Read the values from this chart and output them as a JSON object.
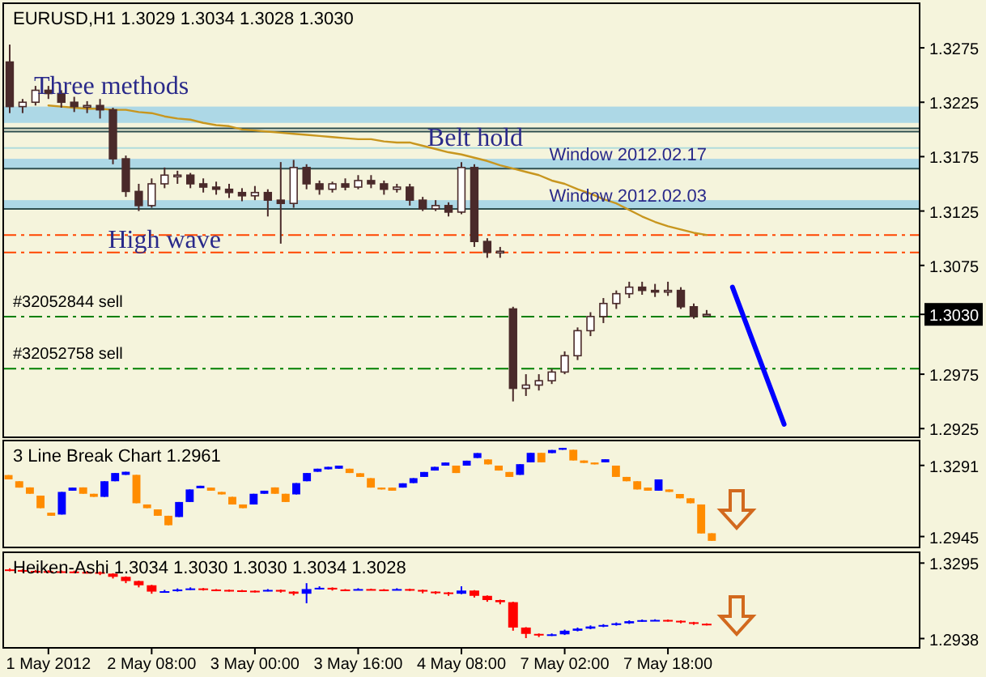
{
  "chart_data": [
    {
      "type": "candlestick",
      "title": "EURUSD,H1  1.3029 1.3034 1.3028 1.3030",
      "color": "#4a2a2a",
      "categories": [
        null,
        null,
        null,
        null,
        null,
        null,
        null,
        null,
        null,
        null,
        null,
        null,
        null,
        null,
        null,
        null,
        null,
        null,
        null,
        null,
        null,
        null,
        null,
        null,
        null,
        null,
        null,
        null,
        null,
        null,
        null,
        null,
        null,
        null,
        null,
        null,
        null,
        null,
        null,
        null,
        null,
        null,
        null,
        null,
        null,
        null,
        null,
        null,
        null,
        null,
        null,
        null,
        null,
        null,
        null,
        null,
        null,
        null,
        null,
        null,
        null,
        null,
        null,
        null,
        null,
        null,
        null,
        null,
        null,
        null,
        null
      ],
      "ohlc": [
        [
          1.3262,
          1.3278,
          1.3215,
          1.3221
        ],
        [
          1.3221,
          1.3228,
          1.3215,
          1.3225
        ],
        [
          1.3225,
          1.324,
          1.3222,
          1.3236
        ],
        [
          1.3236,
          1.324,
          1.3228,
          1.3233
        ],
        [
          1.3233,
          1.3236,
          1.322,
          1.3225
        ],
        [
          1.3225,
          1.323,
          1.3216,
          1.3221
        ],
        [
          1.3221,
          1.3226,
          1.3215,
          1.3222
        ],
        [
          1.3222,
          1.3228,
          1.321,
          1.3218
        ],
        [
          1.3218,
          1.322,
          1.3168,
          1.3173
        ],
        [
          1.3173,
          1.3176,
          1.3138,
          1.3143
        ],
        [
          1.3143,
          1.315,
          1.3125,
          1.313
        ],
        [
          1.313,
          1.3155,
          1.3128,
          1.315
        ],
        [
          1.315,
          1.3165,
          1.3146,
          1.3158
        ],
        [
          1.3158,
          1.3162,
          1.315,
          1.3158
        ],
        [
          1.3158,
          1.316,
          1.3146,
          1.315
        ],
        [
          1.315,
          1.3155,
          1.3142,
          1.3147
        ],
        [
          1.3147,
          1.3152,
          1.314,
          1.3145
        ],
        [
          1.3145,
          1.315,
          1.3137,
          1.3142
        ],
        [
          1.3142,
          1.3146,
          1.3134,
          1.3139
        ],
        [
          1.3139,
          1.3148,
          1.3135,
          1.3142
        ],
        [
          1.3142,
          1.3145,
          1.312,
          1.3135
        ],
        [
          1.3135,
          1.317,
          1.3095,
          1.3132
        ],
        [
          1.3132,
          1.3172,
          1.3128,
          1.3165
        ],
        [
          1.3165,
          1.3168,
          1.3145,
          1.315
        ],
        [
          1.315,
          1.3153,
          1.314,
          1.3145
        ],
        [
          1.3145,
          1.3152,
          1.3142,
          1.315
        ],
        [
          1.315,
          1.3155,
          1.3144,
          1.3147
        ],
        [
          1.3147,
          1.3158,
          1.3145,
          1.3153
        ],
        [
          1.3153,
          1.3158,
          1.3146,
          1.315
        ],
        [
          1.315,
          1.3153,
          1.314,
          1.3145
        ],
        [
          1.3145,
          1.315,
          1.3142,
          1.3147
        ],
        [
          1.3147,
          1.315,
          1.313,
          1.3135
        ],
        [
          1.3135,
          1.3138,
          1.3125,
          1.3127
        ],
        [
          1.3127,
          1.3135,
          1.3125,
          1.313
        ],
        [
          1.313,
          1.3133,
          1.312,
          1.3124
        ],
        [
          1.3124,
          1.317,
          1.3122,
          1.3165
        ],
        [
          1.3165,
          1.3168,
          1.3092,
          1.3097
        ],
        [
          1.3097,
          1.31,
          1.3082,
          1.3087
        ],
        [
          1.3087,
          1.3092,
          1.3082,
          1.3088
        ],
        [
          1.3035,
          1.3037,
          1.295,
          1.2962
        ],
        [
          1.2962,
          1.2975,
          1.2955,
          1.2965
        ],
        [
          1.2965,
          1.2975,
          1.296,
          1.2969
        ],
        [
          1.2969,
          1.298,
          1.2966,
          1.2977
        ],
        [
          1.2977,
          1.2996,
          1.2975,
          1.2992
        ],
        [
          1.2992,
          1.3018,
          1.2988,
          1.3015
        ],
        [
          1.3015,
          1.3032,
          1.301,
          1.3028
        ],
        [
          1.3028,
          1.3045,
          1.3022,
          1.304
        ],
        [
          1.304,
          1.3052,
          1.3035,
          1.3049
        ],
        [
          1.3049,
          1.306,
          1.3045,
          1.3055
        ],
        [
          1.3055,
          1.306,
          1.3048,
          1.3052
        ],
        [
          1.3052,
          1.3058,
          1.3046,
          1.3051
        ],
        [
          1.3051,
          1.306,
          1.3047,
          1.3052
        ],
        [
          1.3052,
          1.3055,
          1.3035,
          1.3037
        ],
        [
          1.3037,
          1.304,
          1.3026,
          1.3028
        ],
        [
          1.3029,
          1.3034,
          1.3028,
          1.303
        ],
        null,
        null,
        null,
        null,
        null,
        null,
        null,
        null,
        null,
        null,
        null,
        null,
        null,
        null,
        null,
        null
      ],
      "colors": [
        "#4a2a2a",
        "#ffffff",
        "#ffffff",
        "#4a2a2a",
        "#4a2a2a",
        "#4a2a2a",
        "#ffffff",
        "#4a2a2a",
        "#4a2a2a",
        "#4a2a2a",
        "#4a2a2a",
        "#ffffff",
        "#ffffff",
        "#ffffff",
        "#4a2a2a",
        "#4a2a2a",
        "#4a2a2a",
        "#4a2a2a",
        "#4a2a2a",
        "#ffffff",
        "#4a2a2a",
        "#4a2a2a",
        "#ffffff",
        "#4a2a2a",
        "#4a2a2a",
        "#ffffff",
        "#4a2a2a",
        "#ffffff",
        "#4a2a2a",
        "#4a2a2a",
        "#ffffff",
        "#4a2a2a",
        "#4a2a2a",
        "#ffffff",
        "#4a2a2a",
        "#ffffff",
        "#4a2a2a",
        "#4a2a2a",
        "#ffffff",
        "#4a2a2a",
        "#ffffff",
        "#ffffff",
        "#ffffff",
        "#ffffff",
        "#ffffff",
        "#ffffff",
        "#ffffff",
        "#ffffff",
        "#ffffff",
        "#4a2a2a",
        "#4a2a2a",
        "#ffffff",
        "#4a2a2a",
        "#4a2a2a",
        "#ffffff",
        null,
        null,
        null,
        null,
        null,
        null,
        null,
        null,
        null,
        null,
        null,
        null,
        null,
        null,
        null,
        null
      ],
      "series": [
        {
          "type": "line",
          "color": "#c8961e",
          "values": [
            null,
            null,
            null,
            1.3222,
            1.3221,
            1.322,
            1.3219,
            1.3219,
            1.3218,
            1.3218,
            1.3216,
            1.3215,
            1.3212,
            1.321,
            1.3209,
            1.3206,
            1.3204,
            1.3203,
            1.32,
            1.3199,
            1.3198,
            1.3197,
            1.3196,
            1.3195,
            1.3194,
            1.3193,
            1.3192,
            1.3191,
            1.3191,
            1.3189,
            1.3188,
            1.3188,
            1.3185,
            1.3182,
            1.3179,
            1.3177,
            1.3174,
            1.3171,
            1.3167,
            1.3164,
            1.3161,
            1.3158,
            1.3153,
            1.315,
            1.3145,
            1.3141,
            1.3136,
            1.3132,
            1.3126,
            1.312,
            1.3115,
            1.3111,
            1.3108,
            1.3105,
            1.3103,
            null,
            null,
            null,
            null,
            null,
            null,
            null,
            null,
            null,
            null,
            null,
            null,
            null,
            null,
            null,
            null
          ]
        },
        {
          "type": "line",
          "color": "#0000ff",
          "values": [
            null,
            null,
            null,
            null,
            null,
            null,
            null,
            null,
            null,
            null,
            null,
            null,
            null,
            null,
            null,
            null,
            null,
            null,
            null,
            null,
            null,
            null,
            null,
            null,
            null,
            null,
            null,
            null,
            null,
            null,
            null,
            null,
            null,
            null,
            null,
            null,
            null,
            null,
            null,
            null,
            null,
            null,
            null,
            null,
            null,
            null,
            null,
            null,
            null,
            null,
            null,
            null,
            null,
            null,
            null,
            null,
            1.3055,
            null,
            null,
            null,
            1.2929,
            null,
            null,
            null,
            null,
            null,
            null,
            null,
            null,
            null,
            null
          ]
        }
      ],
      "bands": [
        {
          "axis": "y",
          "from": 1.3206,
          "to": 1.3221,
          "color": "#add8e6"
        },
        {
          "axis": "y",
          "from": 1.3164,
          "to": 1.3173,
          "color": "#add8e6",
          "label": "Window 2012.02.17"
        },
        {
          "axis": "y",
          "from": 1.3127,
          "to": 1.3135,
          "color": "#add8e6",
          "label": "Window 2012.02.03"
        }
      ],
      "ref_lines": [
        {
          "axis": "y",
          "value": 1.3201,
          "color": "#2f4f4f",
          "line_style": "solid"
        },
        {
          "axis": "y",
          "value": 1.3198,
          "color": "#2f4f4f",
          "line_style": "solid"
        },
        {
          "axis": "y",
          "value": 1.3183,
          "color": "#b0dcdc",
          "line_style": "solid"
        },
        {
          "axis": "y",
          "value": 1.3164,
          "color": "#2f4f4f",
          "line_style": "solid"
        },
        {
          "axis": "y",
          "value": 1.3127,
          "color": "#2f4f4f",
          "line_style": "solid"
        },
        {
          "axis": "y",
          "value": 1.3103,
          "color": "#ff4500",
          "line_style": "dashed"
        },
        {
          "axis": "y",
          "value": 1.3087,
          "color": "#ff4500",
          "line_style": "dashed"
        },
        {
          "axis": "y",
          "value": 1.3028,
          "color": "#008000",
          "line_style": "dashed",
          "label": "#32052844 sell"
        },
        {
          "axis": "y",
          "value": 1.298,
          "color": "#008000",
          "line_style": "dashed",
          "label": "#32052758 sell"
        }
      ],
      "annotations": [
        "Three methods",
        "High wave",
        "Belt hold"
      ],
      "ylim": [
        1.2917,
        1.3316
      ],
      "yticks": [
        1.2925,
        1.2975,
        {
          "value": 1.303,
          "label": "1.3030"
        },
        1.3075,
        1.3125,
        1.3175,
        1.3225,
        1.3275
      ],
      "tick_labels": "y"
    },
    {
      "type": "candlestick",
      "title": "3 Line Break Chart 1.2961",
      "categories": [
        null,
        null,
        null,
        null,
        null,
        null,
        null,
        null,
        null,
        null,
        null,
        null,
        null,
        null,
        null,
        null,
        null,
        null,
        null,
        null,
        null,
        null,
        null,
        null,
        null,
        null,
        null,
        null,
        null,
        null,
        null,
        null,
        null,
        null,
        null,
        null,
        null,
        null,
        null,
        null,
        null,
        null,
        null,
        null,
        null,
        null,
        null,
        null,
        null,
        null,
        null,
        null,
        null,
        null,
        null,
        null,
        null,
        null,
        null,
        null,
        null,
        null,
        null,
        null,
        null,
        null,
        null,
        null,
        null,
        null,
        null,
        null,
        null,
        null,
        null,
        null,
        null,
        null,
        null,
        null,
        null,
        null,
        null,
        null,
        null,
        null
      ],
      "ohlc": [
        [
          1.3244,
          1.3244,
          1.3223,
          1.3223
        ],
        [
          1.3214,
          1.3214,
          1.3183,
          1.3183
        ],
        [
          1.3184,
          1.3184,
          1.3153,
          1.3153
        ],
        [
          1.3144,
          1.3144,
          1.3083,
          1.3083
        ],
        [
          1.3061,
          1.3061,
          1.3046,
          1.3046
        ],
        [
          1.3052,
          1.3162,
          1.3052,
          1.3162
        ],
        [
          1.3168,
          1.3183,
          1.3168,
          1.3183
        ],
        [
          1.3184,
          1.3184,
          1.3153,
          1.3153
        ],
        [
          1.3153,
          1.3153,
          1.3138,
          1.3138
        ],
        [
          1.3138,
          1.3214,
          1.3138,
          1.3214
        ],
        [
          1.3214,
          1.3254,
          1.3214,
          1.3254
        ],
        [
          1.3245,
          1.326,
          1.3245,
          1.326
        ],
        [
          1.3245,
          1.3245,
          1.3107,
          1.3107
        ],
        [
          1.3101,
          1.3101,
          1.3083,
          1.3083
        ],
        [
          1.3077,
          1.3077,
          1.3046,
          1.3046
        ],
        [
          1.3046,
          1.3046,
          1.3,
          1.3
        ],
        [
          1.304,
          1.3113,
          1.304,
          1.3113
        ],
        [
          1.3113,
          1.3174,
          1.3113,
          1.3174
        ],
        [
          1.318,
          1.3192,
          1.318,
          1.3192
        ],
        [
          1.3183,
          1.3183,
          1.3168,
          1.3168
        ],
        [
          1.3162,
          1.3162,
          1.315,
          1.315
        ],
        [
          1.3138,
          1.3138,
          1.3101,
          1.3101
        ],
        [
          1.3101,
          1.3101,
          1.3083,
          1.3083
        ],
        [
          1.3101,
          1.3153,
          1.3101,
          1.3153
        ],
        [
          1.3153,
          1.3168,
          1.3153,
          1.3168
        ],
        [
          1.3184,
          1.3184,
          1.3153,
          1.3153
        ],
        [
          1.3153,
          1.3153,
          1.3113,
          1.3113
        ],
        [
          1.315,
          1.3205,
          1.315,
          1.3205
        ],
        [
          1.3214,
          1.3254,
          1.3214,
          1.3254
        ],
        [
          1.326,
          1.3275,
          1.326,
          1.3275
        ],
        [
          1.3272,
          1.3284,
          1.3272,
          1.3284
        ],
        [
          1.3275,
          1.329,
          1.3275,
          1.329
        ],
        [
          1.3275,
          1.3275,
          1.3254,
          1.3254
        ],
        [
          1.3253,
          1.3253,
          1.3235,
          1.3235
        ],
        [
          1.3229,
          1.3229,
          1.3183,
          1.3183
        ],
        [
          1.3183,
          1.3183,
          1.3174,
          1.3174
        ],
        [
          1.3183,
          1.3183,
          1.3168,
          1.3168
        ],
        [
          1.3183,
          1.3204,
          1.3183,
          1.3204
        ],
        [
          1.3205,
          1.3229,
          1.3205,
          1.3229
        ],
        [
          1.3235,
          1.3259,
          1.3235,
          1.3259
        ],
        [
          1.3266,
          1.3284,
          1.3266,
          1.3284
        ],
        [
          1.329,
          1.3305,
          1.329,
          1.3305
        ],
        [
          1.329,
          1.329,
          1.3254,
          1.3254
        ],
        [
          1.329,
          1.3314,
          1.329,
          1.3314
        ],
        [
          1.3327,
          1.3351,
          1.3327,
          1.3351
        ],
        [
          1.332,
          1.332,
          1.3296,
          1.3296
        ],
        [
          1.329,
          1.329,
          1.3266,
          1.3266
        ],
        [
          1.3259,
          1.3259,
          1.3235,
          1.3235
        ],
        [
          1.3245,
          1.3297,
          1.3245,
          1.3297
        ],
        [
          1.3306,
          1.3352,
          1.3306,
          1.3352
        ],
        [
          1.3352,
          1.3352,
          1.3306,
          1.3306
        ],
        [
          1.3351,
          1.3366,
          1.3351,
          1.3366
        ],
        [
          1.3367,
          1.3376,
          1.3367,
          1.3376
        ],
        [
          1.3367,
          1.3367,
          1.3315,
          1.3315
        ],
        [
          1.3315,
          1.3315,
          1.3303,
          1.3303
        ],
        [
          1.3305,
          1.3305,
          1.3296,
          1.3296
        ],
        [
          1.3306,
          1.3321,
          1.3306,
          1.3321
        ],
        [
          1.329,
          1.329,
          1.3235,
          1.3235
        ],
        [
          1.3235,
          1.3235,
          1.3214,
          1.3214
        ],
        [
          1.3214,
          1.3214,
          1.3174,
          1.3174
        ],
        [
          1.3183,
          1.3183,
          1.3168,
          1.3168
        ],
        [
          1.3168,
          1.3223,
          1.3168,
          1.3223
        ],
        [
          1.3174,
          1.3174,
          1.3162,
          1.3162
        ],
        [
          1.3152,
          1.3152,
          1.3131,
          1.3131
        ],
        [
          1.3131,
          1.3131,
          1.3107,
          1.3107
        ],
        [
          1.3101,
          1.3101,
          1.296,
          1.296
        ],
        [
          1.2961,
          1.2961,
          1.2924,
          1.2924
        ],
        null,
        null,
        null,
        null,
        null,
        null,
        null,
        null,
        null,
        null,
        null,
        null,
        null,
        null,
        null,
        null,
        null,
        null,
        null
      ],
      "colors": [
        "#ff8c00",
        "#ff8c00",
        "#ff8c00",
        "#ff8c00",
        "#ff8c00",
        "#0000ff",
        "#0000ff",
        "#ff8c00",
        "#ff8c00",
        "#0000ff",
        "#0000ff",
        "#0000ff",
        "#ff8c00",
        "#ff8c00",
        "#ff8c00",
        "#ff8c00",
        "#0000ff",
        "#0000ff",
        "#0000ff",
        "#ff8c00",
        "#ff8c00",
        "#ff8c00",
        "#ff8c00",
        "#0000ff",
        "#0000ff",
        "#ff8c00",
        "#ff8c00",
        "#0000ff",
        "#0000ff",
        "#0000ff",
        "#0000ff",
        "#0000ff",
        "#ff8c00",
        "#ff8c00",
        "#ff8c00",
        "#ff8c00",
        "#ff8c00",
        "#0000ff",
        "#0000ff",
        "#0000ff",
        "#0000ff",
        "#0000ff",
        "#ff8c00",
        "#0000ff",
        "#0000ff",
        "#ff8c00",
        "#ff8c00",
        "#ff8c00",
        "#0000ff",
        "#0000ff",
        "#ff8c00",
        "#0000ff",
        "#0000ff",
        "#ff8c00",
        "#ff8c00",
        "#ff8c00",
        "#0000ff",
        "#ff8c00",
        "#ff8c00",
        "#ff8c00",
        "#ff8c00",
        "#0000ff",
        "#ff8c00",
        "#ff8c00",
        "#ff8c00",
        "#ff8c00",
        "#ff8c00",
        null,
        null,
        null,
        null,
        null,
        null,
        null,
        null,
        null,
        null,
        null,
        null,
        null,
        null,
        null,
        null,
        null,
        null,
        null
      ],
      "ylim": [
        1.2892,
        1.3412
      ],
      "yticks": [
        1.2945,
        1.3291
      ],
      "tick_labels": "y"
    },
    {
      "type": "candlestick",
      "title": "Heiken-Ashi 1.3034 1.3030 1.3030 1.3034 1.3028",
      "categories": [
        null,
        null,
        null,
        "1 May 2012",
        null,
        null,
        null,
        null,
        null,
        null,
        null,
        "2 May 08:00",
        null,
        null,
        null,
        null,
        null,
        null,
        null,
        "3 May 00:00",
        null,
        null,
        null,
        null,
        null,
        null,
        null,
        "3 May 16:00",
        null,
        null,
        null,
        null,
        null,
        null,
        null,
        "4 May 08:00",
        null,
        null,
        null,
        null,
        null,
        null,
        null,
        "7 May 02:00",
        null,
        null,
        null,
        null,
        null,
        null,
        null,
        "7 May 18:00",
        null,
        null,
        null,
        null,
        null,
        null,
        null,
        null,
        null,
        null,
        null,
        null,
        null,
        null,
        null,
        null,
        null,
        null,
        null
      ],
      "ohlc": [
        [
          1.3265,
          1.327,
          1.3256,
          1.3262
        ],
        [
          1.3262,
          1.3266,
          1.3252,
          1.3258
        ],
        [
          1.3258,
          1.3262,
          1.3251,
          1.3257
        ],
        [
          1.3257,
          1.3261,
          1.325,
          1.3256
        ],
        [
          1.3256,
          1.326,
          1.3249,
          1.3255
        ],
        [
          1.3255,
          1.3259,
          1.3247,
          1.3253
        ],
        [
          1.3253,
          1.3257,
          1.3246,
          1.3252
        ],
        [
          1.3252,
          1.3255,
          1.3238,
          1.3245
        ],
        [
          1.3245,
          1.3247,
          1.3222,
          1.323
        ],
        [
          1.323,
          1.3232,
          1.32,
          1.321
        ],
        [
          1.321,
          1.3212,
          1.318,
          1.319
        ],
        [
          1.319,
          1.3192,
          1.315,
          1.316
        ],
        [
          1.316,
          1.3168,
          1.3155,
          1.3162
        ],
        [
          1.3162,
          1.3175,
          1.316,
          1.317
        ],
        [
          1.317,
          1.318,
          1.3168,
          1.3175
        ],
        [
          1.3175,
          1.3177,
          1.3165,
          1.317
        ],
        [
          1.317,
          1.3172,
          1.3162,
          1.3168
        ],
        [
          1.3168,
          1.317,
          1.316,
          1.3166
        ],
        [
          1.3166,
          1.3168,
          1.3158,
          1.3164
        ],
        [
          1.3164,
          1.3166,
          1.3156,
          1.3163
        ],
        [
          1.3163,
          1.3172,
          1.3161,
          1.3168
        ],
        [
          1.3168,
          1.317,
          1.3155,
          1.316
        ],
        [
          1.316,
          1.3162,
          1.3142,
          1.315
        ],
        [
          1.315,
          1.32,
          1.3105,
          1.3172
        ],
        [
          1.3172,
          1.3185,
          1.317,
          1.3178
        ],
        [
          1.3178,
          1.318,
          1.3165,
          1.317
        ],
        [
          1.317,
          1.3172,
          1.3163,
          1.3168
        ],
        [
          1.3168,
          1.3176,
          1.3166,
          1.3172
        ],
        [
          1.3172,
          1.3174,
          1.3166,
          1.317
        ],
        [
          1.317,
          1.3172,
          1.3162,
          1.3168
        ],
        [
          1.3168,
          1.3176,
          1.3166,
          1.3172
        ],
        [
          1.3172,
          1.3174,
          1.3163,
          1.3168
        ],
        [
          1.3168,
          1.317,
          1.3152,
          1.316
        ],
        [
          1.316,
          1.3162,
          1.3148,
          1.3156
        ],
        [
          1.3156,
          1.3158,
          1.314,
          1.315
        ],
        [
          1.315,
          1.3185,
          1.3148,
          1.3165
        ],
        [
          1.3165,
          1.3167,
          1.3132,
          1.314
        ],
        [
          1.314,
          1.3142,
          1.3112,
          1.312
        ],
        [
          1.312,
          1.3122,
          1.31,
          1.311
        ],
        [
          1.311,
          1.3112,
          1.2975,
          1.299
        ],
        [
          1.299,
          1.2992,
          1.294,
          1.296
        ],
        [
          1.296,
          1.2962,
          1.2945,
          1.2955
        ],
        [
          1.2955,
          1.2962,
          1.295,
          1.2958
        ],
        [
          1.2958,
          1.298,
          1.2955,
          1.2975
        ],
        [
          1.2975,
          1.299,
          1.2972,
          1.2985
        ],
        [
          1.2985,
          1.3,
          1.2982,
          1.2995
        ],
        [
          1.2995,
          1.3006,
          1.2992,
          1.3002
        ],
        [
          1.3002,
          1.3014,
          1.2999,
          1.301
        ],
        [
          1.301,
          1.3024,
          1.3007,
          1.302
        ],
        [
          1.302,
          1.3028,
          1.3017,
          1.3025
        ],
        [
          1.3025,
          1.3029,
          1.3022,
          1.3026
        ],
        [
          1.3026,
          1.3028,
          1.3018,
          1.3022
        ],
        [
          1.3022,
          1.3024,
          1.301,
          1.3015
        ],
        [
          1.3015,
          1.3017,
          1.3003,
          1.3008
        ],
        [
          1.3008,
          1.301,
          1.3,
          1.3004
        ],
        null,
        null,
        null,
        null,
        null,
        null,
        null,
        null,
        null,
        null,
        null,
        null,
        null,
        null,
        null,
        null
      ],
      "colors": [
        "#ff0000",
        "#ff0000",
        "#ff0000",
        "#ff0000",
        "#ff0000",
        "#ff0000",
        "#ff0000",
        "#ff0000",
        "#ff0000",
        "#ff0000",
        "#ff0000",
        "#ff0000",
        "#0000ff",
        "#0000ff",
        "#0000ff",
        "#ff0000",
        "#ff0000",
        "#ff0000",
        "#ff0000",
        "#ff0000",
        "#0000ff",
        "#ff0000",
        "#ff0000",
        "#0000ff",
        "#0000ff",
        "#ff0000",
        "#ff0000",
        "#0000ff",
        "#ff0000",
        "#ff0000",
        "#0000ff",
        "#ff0000",
        "#ff0000",
        "#ff0000",
        "#ff0000",
        "#0000ff",
        "#ff0000",
        "#ff0000",
        "#ff0000",
        "#ff0000",
        "#ff0000",
        "#ff0000",
        "#0000ff",
        "#0000ff",
        "#0000ff",
        "#0000ff",
        "#0000ff",
        "#0000ff",
        "#0000ff",
        "#0000ff",
        "#0000ff",
        "#ff0000",
        "#ff0000",
        "#ff0000",
        "#ff0000",
        null,
        null,
        null,
        null,
        null,
        null,
        null,
        null,
        null,
        null,
        null,
        null,
        null,
        null,
        null,
        null
      ],
      "ylim": [
        1.2894,
        1.3346
      ],
      "yticks": [
        1.2938,
        1.3295
      ]
    }
  ]
}
